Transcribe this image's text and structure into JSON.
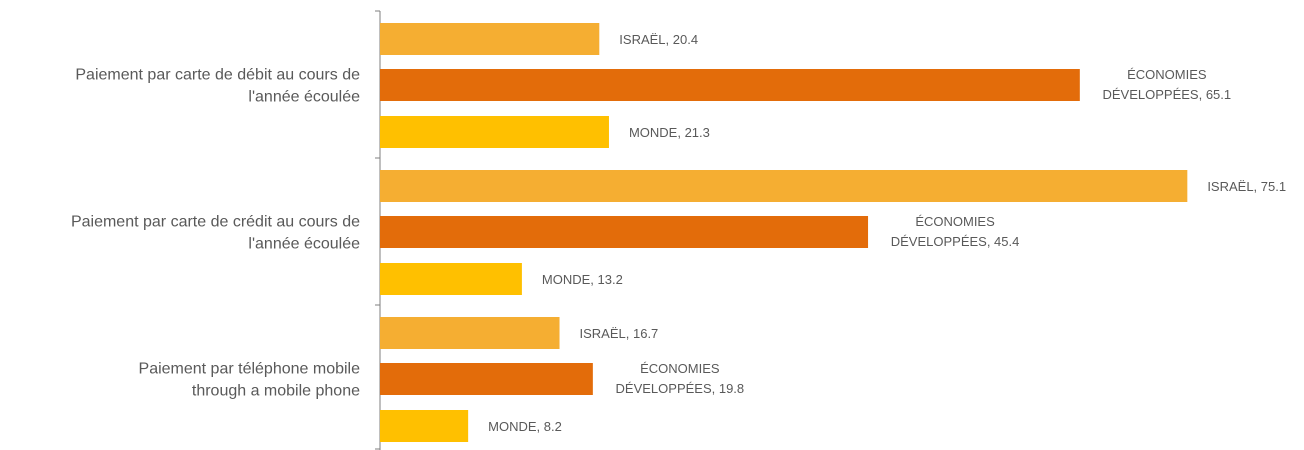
{
  "chart_data": {
    "type": "bar",
    "orientation": "horizontal",
    "categories": [
      "Paiement par carte de débit au cours de l'année écoulée",
      "Paiement par carte de crédit au cours de l'année écoulée",
      "Paiement par téléphone mobile through a mobile phone"
    ],
    "category_lines": [
      [
        "Paiement par carte de débit au cours de",
        "l'année écoulée"
      ],
      [
        "Paiement par carte de crédit au cours de",
        "l'année écoulée"
      ],
      [
        "Paiement par téléphone mobile",
        "through a mobile phone"
      ]
    ],
    "series": [
      {
        "name": "ISRAËL",
        "label_lines": [
          "ISRAËL"
        ],
        "color": "#F5AE32",
        "values": [
          20.4,
          75.1,
          16.7
        ]
      },
      {
        "name": "ÉCONOMIES DÉVELOPPÉES",
        "label_lines": [
          "ÉCONOMIES",
          "DÉVELOPPÉES"
        ],
        "color": "#E36C0A",
        "values": [
          65.1,
          45.4,
          19.8
        ]
      },
      {
        "name": "MONDE",
        "label_lines": [
          "MONDE"
        ],
        "color": "#FFC000",
        "values": [
          21.3,
          13.2,
          8.2
        ]
      }
    ],
    "xlim": [
      0,
      80
    ],
    "legend": "none",
    "grid": false,
    "data_labels": true
  }
}
